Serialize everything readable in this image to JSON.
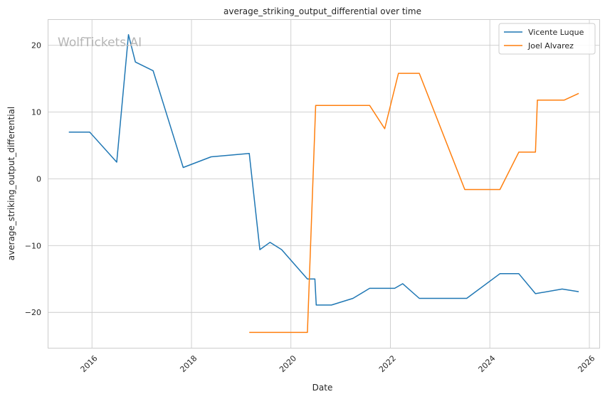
{
  "chart_data": {
    "type": "line",
    "title": "average_striking_output_differential over time",
    "xlabel": "Date",
    "ylabel": "average_striking_output_differential",
    "watermark": "WolfTickets.AI",
    "x_ticks": [
      "2016",
      "2018",
      "2020",
      "2022",
      "2024",
      "2026"
    ],
    "y_ticks": [
      20,
      10,
      0,
      -10,
      -20
    ],
    "xlim": [
      "2015-02-15",
      "2026-03-15"
    ],
    "ylim": [
      -25.3,
      23.8
    ],
    "grid": true,
    "legend_position": "top-right",
    "series": [
      {
        "name": "Vicente Luque",
        "color": "#1f77b4",
        "points": [
          [
            "2015-07-15",
            7.0
          ],
          [
            "2015-12-15",
            7.0
          ],
          [
            "2016-07-01",
            2.5
          ],
          [
            "2016-09-25",
            21.6
          ],
          [
            "2016-11-15",
            17.5
          ],
          [
            "2017-03-25",
            16.2
          ],
          [
            "2017-11-01",
            1.7
          ],
          [
            "2018-05-25",
            3.3
          ],
          [
            "2019-03-01",
            3.8
          ],
          [
            "2019-05-18",
            -10.6
          ],
          [
            "2019-08-01",
            -9.5
          ],
          [
            "2019-10-25",
            -10.6
          ],
          [
            "2020-05-01",
            -15.0
          ],
          [
            "2020-06-25",
            -15.0
          ],
          [
            "2020-07-05",
            -18.9
          ],
          [
            "2020-10-25",
            -18.9
          ],
          [
            "2021-04-01",
            -17.9
          ],
          [
            "2021-08-01",
            -16.4
          ],
          [
            "2022-02-01",
            -16.4
          ],
          [
            "2022-04-01",
            -15.7
          ],
          [
            "2022-08-01",
            -17.9
          ],
          [
            "2023-07-15",
            -17.9
          ],
          [
            "2024-03-15",
            -14.2
          ],
          [
            "2024-08-01",
            -14.2
          ],
          [
            "2024-12-01",
            -17.2
          ],
          [
            "2025-06-15",
            -16.5
          ],
          [
            "2025-10-15",
            -16.9
          ]
        ]
      },
      {
        "name": "Joel Alvarez",
        "color": "#ff7f0e",
        "points": [
          [
            "2019-03-01",
            -23.0
          ],
          [
            "2020-05-01",
            -23.0
          ],
          [
            "2020-07-01",
            11.0
          ],
          [
            "2021-08-01",
            11.0
          ],
          [
            "2021-11-20",
            7.5
          ],
          [
            "2022-03-01",
            15.8
          ],
          [
            "2022-08-01",
            15.8
          ],
          [
            "2023-07-01",
            -1.6
          ],
          [
            "2024-03-15",
            -1.6
          ],
          [
            "2024-08-01",
            4.0
          ],
          [
            "2024-12-01",
            4.0
          ],
          [
            "2024-12-15",
            11.8
          ],
          [
            "2025-07-01",
            11.8
          ],
          [
            "2025-10-15",
            12.8
          ]
        ]
      }
    ]
  }
}
